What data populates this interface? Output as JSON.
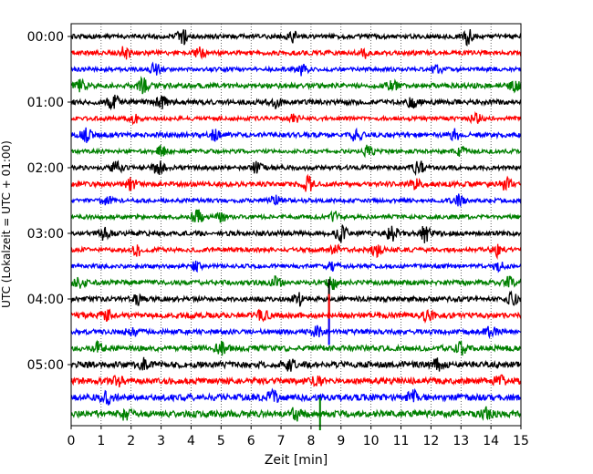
{
  "chart_data": {
    "type": "line",
    "title": "",
    "xlabel": "Zeit  [min]",
    "ylabel": "UTC (Lokalzeit = UTC + 01:00)",
    "xlim": [
      0,
      15
    ],
    "x_ticks": [
      0,
      1,
      2,
      3,
      4,
      5,
      6,
      7,
      8,
      9,
      10,
      11,
      12,
      13,
      14,
      15
    ],
    "x_tick_labels": [
      "0",
      "1",
      "2",
      "3",
      "4",
      "5",
      "6",
      "7",
      "8",
      "9",
      "10",
      "11",
      "12",
      "13",
      "14",
      "15"
    ],
    "y_tick_labels": [
      "00:00",
      "01:00",
      "02:00",
      "03:00",
      "04:00",
      "05:00"
    ],
    "y_tick_trace_index": [
      0,
      4,
      8,
      12,
      16,
      20
    ],
    "trace_interval_min": 15,
    "grid": "vertical dotted at each minute",
    "colors": [
      "#000000",
      "#ff0000",
      "#0000ff",
      "#008000"
    ],
    "traces": [
      {
        "start": "00:00",
        "color": "#000000",
        "amp": 0.22,
        "bursts": [
          [
            3.7,
            0.75
          ],
          [
            7.4,
            0.5
          ],
          [
            13.2,
            0.75
          ]
        ],
        "spikes": []
      },
      {
        "start": "00:15",
        "color": "#ff0000",
        "amp": 0.22,
        "bursts": [
          [
            1.8,
            0.6
          ],
          [
            4.3,
            0.45
          ],
          [
            9.8,
            0.4
          ]
        ],
        "spikes": []
      },
      {
        "start": "00:30",
        "color": "#0000ff",
        "amp": 0.2,
        "bursts": [
          [
            2.8,
            0.5
          ],
          [
            7.7,
            0.55
          ],
          [
            12.2,
            0.4
          ]
        ],
        "spikes": []
      },
      {
        "start": "00:45",
        "color": "#008000",
        "amp": 0.25,
        "bursts": [
          [
            0.3,
            0.55
          ],
          [
            2.4,
            0.7
          ],
          [
            10.7,
            0.45
          ],
          [
            14.8,
            0.5
          ]
        ],
        "spikes": []
      },
      {
        "start": "01:00",
        "color": "#000000",
        "amp": 0.25,
        "bursts": [
          [
            1.4,
            0.7
          ],
          [
            3.0,
            0.55
          ],
          [
            6.8,
            0.5
          ],
          [
            11.4,
            0.5
          ]
        ],
        "spikes": []
      },
      {
        "start": "01:15",
        "color": "#ff0000",
        "amp": 0.2,
        "bursts": [
          [
            2.1,
            0.55
          ],
          [
            7.4,
            0.45
          ],
          [
            13.5,
            0.45
          ]
        ],
        "spikes": []
      },
      {
        "start": "01:30",
        "color": "#0000ff",
        "amp": 0.24,
        "bursts": [
          [
            0.5,
            0.6
          ],
          [
            4.8,
            0.5
          ],
          [
            9.5,
            0.55
          ],
          [
            12.8,
            0.45
          ]
        ],
        "spikes": []
      },
      {
        "start": "01:45",
        "color": "#008000",
        "amp": 0.2,
        "bursts": [
          [
            3.0,
            0.45
          ],
          [
            9.9,
            0.55
          ],
          [
            13.0,
            0.4
          ]
        ],
        "spikes": []
      },
      {
        "start": "02:00",
        "color": "#000000",
        "amp": 0.22,
        "bursts": [
          [
            1.5,
            0.5
          ],
          [
            2.9,
            0.65
          ],
          [
            6.2,
            0.55
          ],
          [
            11.6,
            0.6
          ]
        ],
        "spikes": []
      },
      {
        "start": "02:15",
        "color": "#ff0000",
        "amp": 0.24,
        "bursts": [
          [
            2.0,
            0.5
          ],
          [
            7.9,
            0.65
          ],
          [
            11.5,
            0.45
          ],
          [
            14.5,
            0.5
          ]
        ],
        "spikes": []
      },
      {
        "start": "02:30",
        "color": "#0000ff",
        "amp": 0.2,
        "bursts": [
          [
            1.2,
            0.45
          ],
          [
            6.8,
            0.45
          ],
          [
            12.9,
            0.5
          ]
        ],
        "spikes": []
      },
      {
        "start": "02:45",
        "color": "#008000",
        "amp": 0.2,
        "bursts": [
          [
            4.2,
            0.65
          ],
          [
            5.0,
            0.45
          ],
          [
            8.8,
            0.45
          ]
        ],
        "spikes": []
      },
      {
        "start": "03:00",
        "color": "#000000",
        "amp": 0.24,
        "bursts": [
          [
            1.1,
            0.55
          ],
          [
            9.0,
            0.8
          ],
          [
            10.7,
            0.75
          ],
          [
            11.8,
            0.85
          ]
        ],
        "spikes": []
      },
      {
        "start": "03:15",
        "color": "#ff0000",
        "amp": 0.22,
        "bursts": [
          [
            2.2,
            0.55
          ],
          [
            8.8,
            0.5
          ],
          [
            10.2,
            0.55
          ],
          [
            14.2,
            0.6
          ]
        ],
        "spikes": []
      },
      {
        "start": "03:30",
        "color": "#0000ff",
        "amp": 0.2,
        "bursts": [
          [
            4.2,
            0.45
          ],
          [
            8.7,
            0.45
          ],
          [
            14.3,
            0.45
          ]
        ],
        "spikes": []
      },
      {
        "start": "03:45",
        "color": "#008000",
        "amp": 0.24,
        "bursts": [
          [
            0.3,
            0.5
          ],
          [
            6.8,
            0.5
          ],
          [
            8.7,
            0.6
          ],
          [
            14.6,
            0.5
          ]
        ],
        "spikes": []
      },
      {
        "start": "04:00",
        "color": "#000000",
        "amp": 0.24,
        "bursts": [
          [
            2.2,
            0.5
          ],
          [
            7.6,
            0.55
          ],
          [
            14.7,
            0.5
          ]
        ],
        "spikes": [
          [
            8.6,
            1.2
          ]
        ]
      },
      {
        "start": "04:15",
        "color": "#ff0000",
        "amp": 0.26,
        "bursts": [
          [
            1.2,
            0.5
          ],
          [
            6.4,
            0.55
          ],
          [
            11.9,
            0.5
          ]
        ],
        "spikes": [
          [
            8.6,
            1.3
          ]
        ]
      },
      {
        "start": "04:30",
        "color": "#0000ff",
        "amp": 0.24,
        "bursts": [
          [
            2.0,
            0.5
          ],
          [
            8.2,
            0.45
          ],
          [
            14.0,
            0.45
          ]
        ],
        "spikes": [
          [
            8.6,
            0.8
          ]
        ]
      },
      {
        "start": "04:45",
        "color": "#008000",
        "amp": 0.28,
        "bursts": [
          [
            0.9,
            0.45
          ],
          [
            5.0,
            0.5
          ],
          [
            13.0,
            0.5
          ]
        ],
        "spikes": []
      },
      {
        "start": "05:00",
        "color": "#000000",
        "amp": 0.3,
        "bursts": [
          [
            2.4,
            0.5
          ],
          [
            7.3,
            0.55
          ],
          [
            12.2,
            0.5
          ]
        ],
        "spikes": []
      },
      {
        "start": "05:15",
        "color": "#ff0000",
        "amp": 0.3,
        "bursts": [
          [
            1.6,
            0.5
          ],
          [
            8.2,
            0.5
          ],
          [
            14.3,
            0.5
          ]
        ],
        "spikes": []
      },
      {
        "start": "05:30",
        "color": "#0000ff",
        "amp": 0.32,
        "bursts": [
          [
            1.2,
            0.55
          ],
          [
            6.7,
            0.5
          ],
          [
            11.4,
            0.5
          ]
        ],
        "spikes": []
      },
      {
        "start": "05:45",
        "color": "#008000",
        "amp": 0.32,
        "bursts": [
          [
            1.8,
            0.5
          ],
          [
            7.5,
            0.55
          ],
          [
            13.9,
            0.5
          ]
        ],
        "spikes": [
          [
            8.3,
            1.0
          ]
        ]
      }
    ]
  }
}
